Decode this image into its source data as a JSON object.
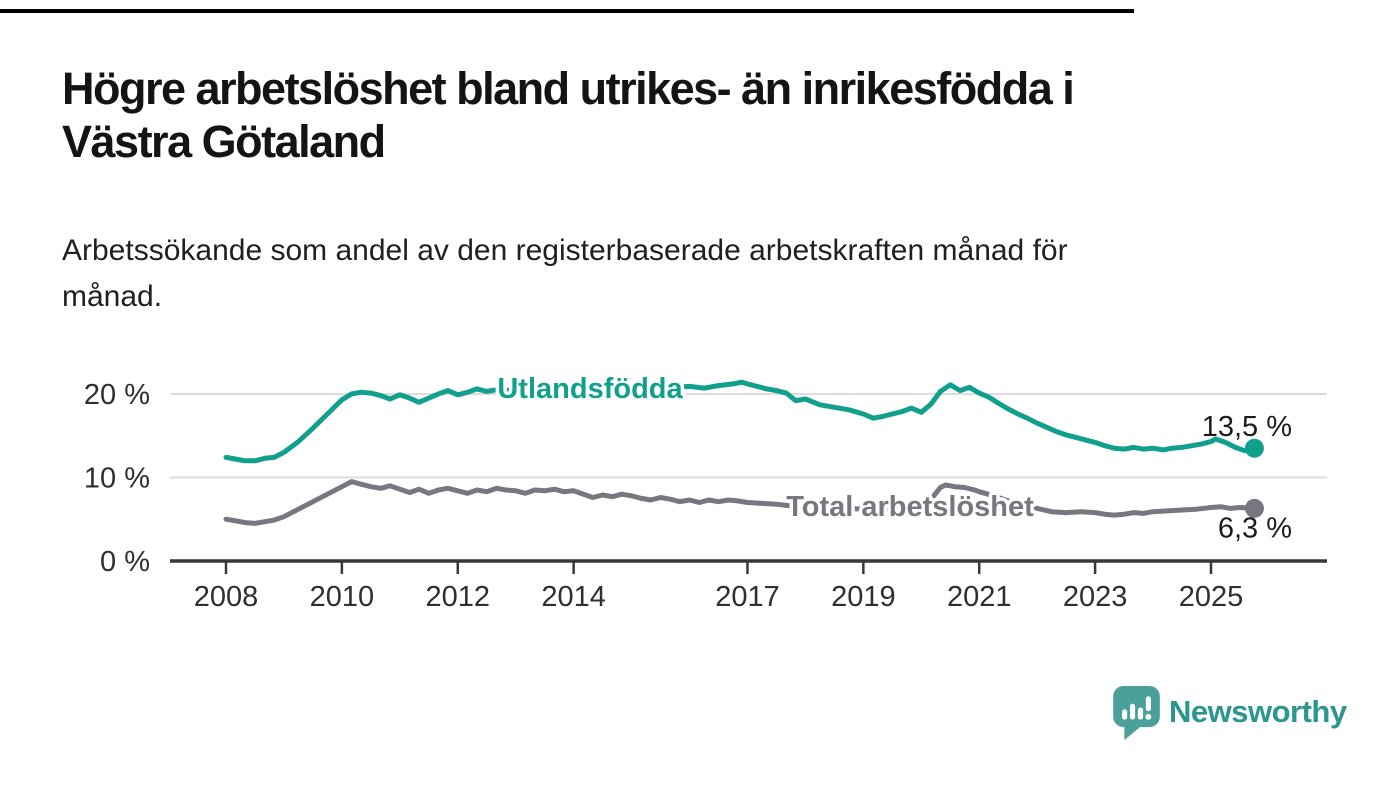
{
  "header": {
    "title_lines": [
      "Högre arbetslöshet bland utrikes- än inrikesfödda i",
      "Västra Götaland"
    ],
    "subtitle_lines": [
      "Arbetssökande som andel av den registerbaserade arbetskraften månad för",
      "månad."
    ]
  },
  "chart_data": {
    "type": "line",
    "title": "Högre arbetslöshet bland utrikes- än inrikesfödda i Västra Götaland",
    "subtitle": "Arbetssökande som andel av den registerbaserade arbetskraften månad för månad.",
    "xlabel": "",
    "ylabel": "%",
    "x_unit": "decimal_year",
    "xlim": [
      2007.0,
      2026.2
    ],
    "ylim": [
      0,
      23
    ],
    "grid": "horizontal",
    "gridline_values": [
      10,
      20
    ],
    "legend_position": "inline-labels",
    "x_axis": {
      "ticks": [
        {
          "label": "2008",
          "value": 2008
        },
        {
          "label": "2010",
          "value": 2010
        },
        {
          "label": "2012",
          "value": 2012
        },
        {
          "label": "2014",
          "value": 2014
        },
        {
          "label": "2017",
          "value": 2017
        },
        {
          "label": "2019",
          "value": 2019
        },
        {
          "label": "2021",
          "value": 2021
        },
        {
          "label": "2023",
          "value": 2023
        },
        {
          "label": "2025",
          "value": 2025
        }
      ]
    },
    "y_axis": {
      "ticks": [
        {
          "label": "20 %",
          "value": 20
        },
        {
          "label": "10 %",
          "value": 10
        },
        {
          "label": "0 %",
          "value": 0
        }
      ]
    },
    "series": [
      {
        "name": "Utlandsfödda",
        "color": "#12a08e",
        "end_label": "13,5 %",
        "end_value": 13.5,
        "points": [
          [
            2008.0,
            12.4
          ],
          [
            2008.17,
            12.2
          ],
          [
            2008.33,
            12.0
          ],
          [
            2008.5,
            12.0
          ],
          [
            2008.67,
            12.3
          ],
          [
            2008.83,
            12.4
          ],
          [
            2009.0,
            13.0
          ],
          [
            2009.25,
            14.3
          ],
          [
            2009.5,
            15.9
          ],
          [
            2009.75,
            17.6
          ],
          [
            2010.0,
            19.3
          ],
          [
            2010.17,
            20.0
          ],
          [
            2010.33,
            20.2
          ],
          [
            2010.5,
            20.1
          ],
          [
            2010.67,
            19.8
          ],
          [
            2010.83,
            19.4
          ],
          [
            2011.0,
            19.9
          ],
          [
            2011.17,
            19.5
          ],
          [
            2011.33,
            19.0
          ],
          [
            2011.5,
            19.5
          ],
          [
            2011.67,
            20.0
          ],
          [
            2011.83,
            20.4
          ],
          [
            2012.0,
            19.9
          ],
          [
            2012.17,
            20.2
          ],
          [
            2012.33,
            20.6
          ],
          [
            2012.5,
            20.3
          ],
          [
            2012.67,
            20.5
          ],
          [
            2012.83,
            20.4
          ],
          [
            2013.0,
            20.6
          ],
          [
            2013.25,
            20.3
          ],
          [
            2013.5,
            20.7
          ],
          [
            2013.75,
            20.4
          ],
          [
            2014.0,
            20.6
          ],
          [
            2014.25,
            20.2
          ],
          [
            2014.5,
            20.5
          ],
          [
            2014.75,
            20.3
          ],
          [
            2015.0,
            20.6
          ],
          [
            2015.25,
            20.4
          ],
          [
            2015.5,
            20.7
          ],
          [
            2015.75,
            20.8
          ],
          [
            2016.0,
            20.9
          ],
          [
            2016.25,
            20.7
          ],
          [
            2016.5,
            21.0
          ],
          [
            2016.75,
            21.2
          ],
          [
            2016.9,
            21.4
          ],
          [
            2017.0,
            21.2
          ],
          [
            2017.17,
            20.9
          ],
          [
            2017.33,
            20.6
          ],
          [
            2017.5,
            20.4
          ],
          [
            2017.67,
            20.1
          ],
          [
            2017.83,
            19.2
          ],
          [
            2018.0,
            19.4
          ],
          [
            2018.25,
            18.7
          ],
          [
            2018.5,
            18.4
          ],
          [
            2018.75,
            18.1
          ],
          [
            2019.0,
            17.6
          ],
          [
            2019.17,
            17.1
          ],
          [
            2019.33,
            17.3
          ],
          [
            2019.5,
            17.6
          ],
          [
            2019.67,
            17.9
          ],
          [
            2019.83,
            18.3
          ],
          [
            2020.0,
            17.8
          ],
          [
            2020.17,
            18.8
          ],
          [
            2020.33,
            20.3
          ],
          [
            2020.5,
            21.1
          ],
          [
            2020.67,
            20.4
          ],
          [
            2020.83,
            20.8
          ],
          [
            2021.0,
            20.1
          ],
          [
            2021.17,
            19.6
          ],
          [
            2021.33,
            18.9
          ],
          [
            2021.5,
            18.2
          ],
          [
            2021.67,
            17.6
          ],
          [
            2021.83,
            17.1
          ],
          [
            2022.0,
            16.5
          ],
          [
            2022.17,
            16.0
          ],
          [
            2022.33,
            15.5
          ],
          [
            2022.5,
            15.1
          ],
          [
            2022.67,
            14.8
          ],
          [
            2022.83,
            14.5
          ],
          [
            2023.0,
            14.2
          ],
          [
            2023.17,
            13.8
          ],
          [
            2023.33,
            13.5
          ],
          [
            2023.5,
            13.4
          ],
          [
            2023.67,
            13.6
          ],
          [
            2023.83,
            13.4
          ],
          [
            2024.0,
            13.5
          ],
          [
            2024.17,
            13.3
          ],
          [
            2024.33,
            13.5
          ],
          [
            2024.5,
            13.6
          ],
          [
            2024.67,
            13.8
          ],
          [
            2024.83,
            14.0
          ],
          [
            2025.0,
            14.3
          ],
          [
            2025.08,
            14.6
          ],
          [
            2025.25,
            14.2
          ],
          [
            2025.42,
            13.6
          ],
          [
            2025.58,
            13.2
          ],
          [
            2025.75,
            13.5
          ]
        ]
      },
      {
        "name": "Total arbetslöshet",
        "color": "#78767f",
        "end_label": "6,3 %",
        "end_value": 6.3,
        "points": [
          [
            2008.0,
            5.0
          ],
          [
            2008.17,
            4.8
          ],
          [
            2008.33,
            4.6
          ],
          [
            2008.5,
            4.5
          ],
          [
            2008.67,
            4.7
          ],
          [
            2008.83,
            4.9
          ],
          [
            2009.0,
            5.3
          ],
          [
            2009.25,
            6.2
          ],
          [
            2009.5,
            7.1
          ],
          [
            2009.75,
            8.0
          ],
          [
            2010.0,
            8.9
          ],
          [
            2010.17,
            9.5
          ],
          [
            2010.33,
            9.2
          ],
          [
            2010.5,
            8.9
          ],
          [
            2010.67,
            8.7
          ],
          [
            2010.83,
            9.0
          ],
          [
            2011.0,
            8.6
          ],
          [
            2011.17,
            8.2
          ],
          [
            2011.33,
            8.6
          ],
          [
            2011.5,
            8.1
          ],
          [
            2011.67,
            8.5
          ],
          [
            2011.83,
            8.7
          ],
          [
            2012.0,
            8.4
          ],
          [
            2012.17,
            8.1
          ],
          [
            2012.33,
            8.5
          ],
          [
            2012.5,
            8.3
          ],
          [
            2012.67,
            8.7
          ],
          [
            2012.83,
            8.5
          ],
          [
            2013.0,
            8.4
          ],
          [
            2013.17,
            8.1
          ],
          [
            2013.33,
            8.5
          ],
          [
            2013.5,
            8.4
          ],
          [
            2013.67,
            8.6
          ],
          [
            2013.83,
            8.3
          ],
          [
            2014.0,
            8.4
          ],
          [
            2014.17,
            8.0
          ],
          [
            2014.33,
            7.6
          ],
          [
            2014.5,
            7.9
          ],
          [
            2014.67,
            7.7
          ],
          [
            2014.83,
            8.0
          ],
          [
            2015.0,
            7.8
          ],
          [
            2015.17,
            7.5
          ],
          [
            2015.33,
            7.3
          ],
          [
            2015.5,
            7.6
          ],
          [
            2015.67,
            7.4
          ],
          [
            2015.83,
            7.1
          ],
          [
            2016.0,
            7.3
          ],
          [
            2016.17,
            7.0
          ],
          [
            2016.33,
            7.3
          ],
          [
            2016.5,
            7.1
          ],
          [
            2016.67,
            7.3
          ],
          [
            2016.83,
            7.2
          ],
          [
            2017.0,
            7.0
          ],
          [
            2017.25,
            6.9
          ],
          [
            2017.5,
            6.8
          ],
          [
            2017.75,
            6.6
          ],
          [
            2018.0,
            6.5
          ],
          [
            2018.25,
            6.3
          ],
          [
            2018.5,
            6.4
          ],
          [
            2018.75,
            6.3
          ],
          [
            2019.0,
            6.2
          ],
          [
            2019.25,
            6.1
          ],
          [
            2019.5,
            6.3
          ],
          [
            2019.75,
            6.4
          ],
          [
            2020.0,
            6.6
          ],
          [
            2020.17,
            7.4
          ],
          [
            2020.33,
            8.8
          ],
          [
            2020.42,
            9.1
          ],
          [
            2020.58,
            8.9
          ],
          [
            2020.75,
            8.8
          ],
          [
            2020.92,
            8.5
          ],
          [
            2021.0,
            8.3
          ],
          [
            2021.25,
            7.8
          ],
          [
            2021.5,
            7.2
          ],
          [
            2021.75,
            6.7
          ],
          [
            2022.0,
            6.3
          ],
          [
            2022.25,
            5.9
          ],
          [
            2022.5,
            5.8
          ],
          [
            2022.75,
            5.9
          ],
          [
            2023.0,
            5.8
          ],
          [
            2023.17,
            5.6
          ],
          [
            2023.33,
            5.5
          ],
          [
            2023.5,
            5.6
          ],
          [
            2023.67,
            5.8
          ],
          [
            2023.83,
            5.7
          ],
          [
            2024.0,
            5.9
          ],
          [
            2024.25,
            6.0
          ],
          [
            2024.5,
            6.1
          ],
          [
            2024.75,
            6.2
          ],
          [
            2025.0,
            6.4
          ],
          [
            2025.17,
            6.5
          ],
          [
            2025.33,
            6.3
          ],
          [
            2025.5,
            6.4
          ],
          [
            2025.75,
            6.3
          ]
        ]
      }
    ],
    "colors": {
      "axis": "#38373d",
      "tick_label": "#2f2e34",
      "gridline": "#dcdcdc",
      "end_label": "#1c1c1c"
    }
  },
  "footer": {
    "brand": "Newsworthy",
    "brand_color": "#2b968e",
    "logo_bubble_color": "#4ba19a",
    "logo_icon": "bar-chart-speech-bubble"
  }
}
